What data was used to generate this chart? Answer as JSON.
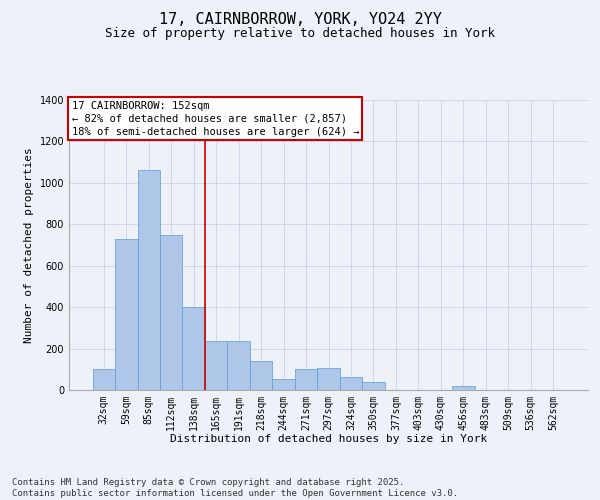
{
  "title": "17, CAIRNBORROW, YORK, YO24 2YY",
  "subtitle": "Size of property relative to detached houses in York",
  "xlabel": "Distribution of detached houses by size in York",
  "ylabel": "Number of detached properties",
  "categories": [
    "32sqm",
    "59sqm",
    "85sqm",
    "112sqm",
    "138sqm",
    "165sqm",
    "191sqm",
    "218sqm",
    "244sqm",
    "271sqm",
    "297sqm",
    "324sqm",
    "350sqm",
    "377sqm",
    "403sqm",
    "430sqm",
    "456sqm",
    "483sqm",
    "509sqm",
    "536sqm",
    "562sqm"
  ],
  "values": [
    100,
    730,
    1060,
    750,
    400,
    235,
    235,
    140,
    55,
    100,
    105,
    65,
    40,
    0,
    0,
    0,
    20,
    0,
    0,
    0,
    0
  ],
  "bar_color": "#aec6e8",
  "bar_edge_color": "#5b9bd5",
  "background_color": "#eef2f8",
  "grid_color": "#c8d4e8",
  "vline_x": 4.5,
  "vline_color": "#cc0000",
  "annotation_text": "17 CAIRNBORROW: 152sqm\n← 82% of detached houses are smaller (2,857)\n18% of semi-detached houses are larger (624) →",
  "annotation_box_color": "#cc0000",
  "ylim": [
    0,
    1400
  ],
  "yticks": [
    0,
    200,
    400,
    600,
    800,
    1000,
    1200,
    1400
  ],
  "footer": "Contains HM Land Registry data © Crown copyright and database right 2025.\nContains public sector information licensed under the Open Government Licence v3.0.",
  "title_fontsize": 11,
  "subtitle_fontsize": 9,
  "xlabel_fontsize": 8,
  "ylabel_fontsize": 8,
  "tick_fontsize": 7,
  "annotation_fontsize": 7.5,
  "footer_fontsize": 6.5
}
